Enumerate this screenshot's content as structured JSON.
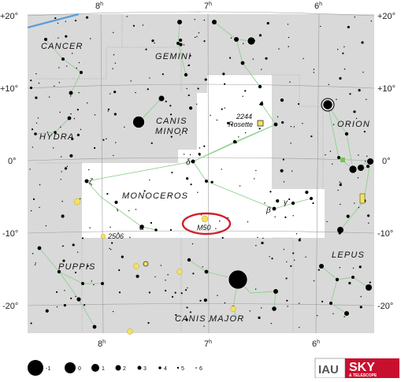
{
  "map": {
    "ra_labels": [
      {
        "hours": "8",
        "unit": "h"
      },
      {
        "hours": "7",
        "unit": "h"
      },
      {
        "hours": "6",
        "unit": "h"
      }
    ],
    "dec_labels": [
      "+20°",
      "+10°",
      "0°",
      "-10°",
      "-20°"
    ],
    "constellations": [
      "CANCER",
      "GEMINI",
      "HYDRA",
      "CANIS",
      "MINOR",
      "ORION",
      "MONOCEROS",
      "PUPPIS",
      "LEPUS",
      "CANIS MAJOR"
    ],
    "greek_letters": [
      "δ",
      "ζ",
      "α",
      "β",
      "γ"
    ],
    "objects": {
      "rosette_number": "2244",
      "rosette_name": "Rosette",
      "m50": "M50",
      "ngc2506": "2506"
    },
    "highlight_color": "#d0202a",
    "region_color": "#ffffff",
    "sky_color": "#d9d9d9",
    "constellation_line_color": "#8fd18f",
    "cluster_color": "#f5e15b"
  },
  "legend": {
    "magnitudes": [
      "-1",
      "0",
      "1",
      "2",
      "3",
      "4",
      "5",
      "6"
    ]
  },
  "logo": {
    "iau": "IAU",
    "sky": "SKY",
    "telescope": "& TELESCOPE"
  }
}
